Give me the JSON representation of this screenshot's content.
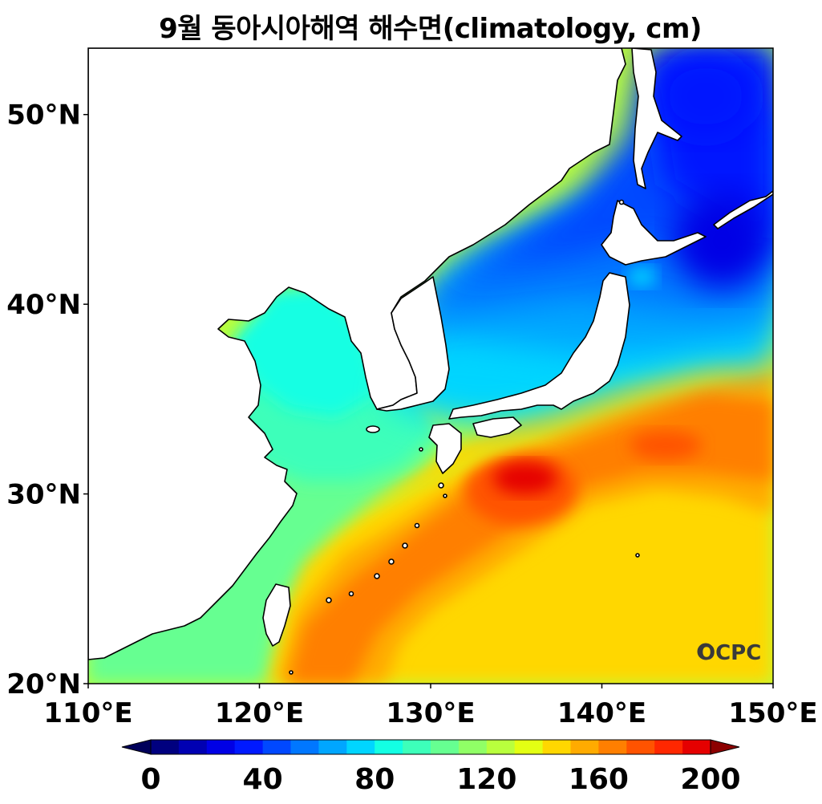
{
  "title": "9월 동아시아해역 해수면(climatology, cm)",
  "logo_text": "OCPC",
  "map": {
    "lon_range": [
      110,
      150
    ],
    "lat_range": [
      20,
      53.5
    ],
    "lon_ticks": [
      {
        "value": 110,
        "label": "110°E"
      },
      {
        "value": 120,
        "label": "120°E"
      },
      {
        "value": 130,
        "label": "130°E"
      },
      {
        "value": 140,
        "label": "140°E"
      },
      {
        "value": 150,
        "label": "150°E"
      }
    ],
    "lat_ticks": [
      {
        "value": 20,
        "label": "20°N"
      },
      {
        "value": 30,
        "label": "30°N"
      },
      {
        "value": 40,
        "label": "40°N"
      },
      {
        "value": 50,
        "label": "50°N"
      }
    ]
  },
  "colorbar": {
    "min": 0,
    "max": 200,
    "step": 10,
    "extend": "both",
    "labels": [
      {
        "value": 0,
        "label": "0"
      },
      {
        "value": 40,
        "label": "40"
      },
      {
        "value": 80,
        "label": "80"
      },
      {
        "value": 120,
        "label": "120"
      },
      {
        "value": 160,
        "label": "160"
      },
      {
        "value": 200,
        "label": "200"
      }
    ],
    "colors": [
      "#00007f",
      "#0000b2",
      "#0000e5",
      "#0019ff",
      "#0048ff",
      "#0077ff",
      "#00a6ff",
      "#00d5ff",
      "#13ffe3",
      "#3dffba",
      "#66ff91",
      "#90ff66",
      "#b9ff3d",
      "#e3ff13",
      "#ffd700",
      "#ffab00",
      "#ff7f00",
      "#ff5300",
      "#ff2700",
      "#e50000",
      "#b20000"
    ],
    "under_color": "#00005a",
    "over_color": "#8c0000"
  }
}
